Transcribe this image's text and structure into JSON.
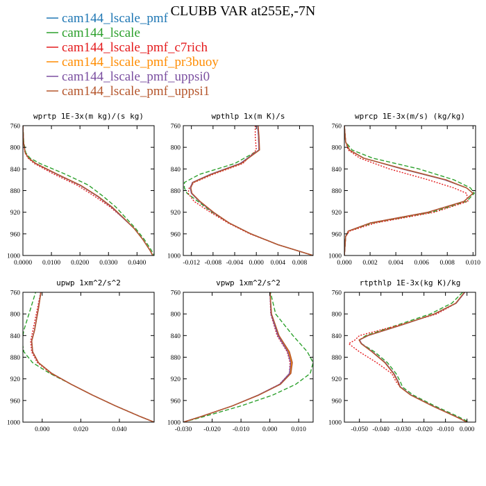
{
  "title": "CLUBB VAR at255E,-7N",
  "legend": [
    {
      "name": "cam144_lscale_pmf",
      "color": "#1f77b4",
      "dash": "solid"
    },
    {
      "name": "cam144_lscale",
      "color": "#2ca02c",
      "dash": "dashed"
    },
    {
      "name": "cam144_lscale_pmf_c7rich",
      "color": "#e41a1c",
      "dash": "dotted"
    },
    {
      "name": "cam144_lscale_pmf_pr3buoy",
      "color": "#ff8c00",
      "dash": "solid"
    },
    {
      "name": "cam144_lscale_pmf_uppsi0",
      "color": "#7b4fa0",
      "dash": "solid"
    },
    {
      "name": "cam144_lscale_pmf_uppsi1",
      "color": "#b5562c",
      "dash": "solid"
    }
  ],
  "chart_data": [
    {
      "type": "line",
      "title": "wprtp  1E-3x(m kg)/(s kg)",
      "xlim": [
        0,
        0.046
      ],
      "ylim": [
        760,
        1000
      ],
      "y_inverted": true,
      "xticks": [
        0,
        0.01,
        0.02,
        0.03,
        0.04
      ],
      "xticklabels": [
        "0.0000",
        "0.0100",
        "0.0200",
        "0.0300",
        "0.0400"
      ],
      "yticks": [
        760,
        800,
        840,
        880,
        920,
        960,
        1000
      ],
      "y": [
        760,
        790,
        810,
        820,
        830,
        850,
        870,
        890,
        910,
        930,
        950,
        970,
        990,
        1000
      ],
      "series": [
        {
          "name": "cam144_lscale_pmf",
          "x": [
            0.0,
            0.0002,
            0.0008,
            0.002,
            0.0045,
            0.012,
            0.02,
            0.026,
            0.031,
            0.035,
            0.039,
            0.042,
            0.0445,
            0.0455
          ]
        },
        {
          "name": "cam144_lscale",
          "x": [
            0.0,
            0.0003,
            0.001,
            0.0025,
            0.006,
            0.015,
            0.023,
            0.028,
            0.0325,
            0.036,
            0.0395,
            0.0425,
            0.045,
            0.046
          ]
        },
        {
          "name": "cam144_lscale_pmf_c7rich",
          "x": [
            0.0,
            0.0002,
            0.0007,
            0.0018,
            0.004,
            0.011,
            0.019,
            0.025,
            0.0305,
            0.035,
            0.039,
            0.042,
            0.0445,
            0.0455
          ]
        },
        {
          "name": "cam144_lscale_pmf_pr3buoy",
          "x": [
            0.0,
            0.0002,
            0.0008,
            0.002,
            0.0045,
            0.012,
            0.02,
            0.026,
            0.031,
            0.035,
            0.039,
            0.042,
            0.0445,
            0.0455
          ]
        },
        {
          "name": "cam144_lscale_pmf_uppsi0",
          "x": [
            0.0,
            0.0002,
            0.0008,
            0.002,
            0.0045,
            0.012,
            0.02,
            0.026,
            0.031,
            0.035,
            0.039,
            0.042,
            0.0445,
            0.0455
          ]
        },
        {
          "name": "cam144_lscale_pmf_uppsi1",
          "x": [
            0.0,
            0.0002,
            0.0008,
            0.002,
            0.0046,
            0.0122,
            0.0202,
            0.0262,
            0.0312,
            0.0352,
            0.039,
            0.042,
            0.0445,
            0.0455
          ]
        }
      ]
    },
    {
      "type": "line",
      "title": "wpthlp  1x(m K)/s",
      "xlim": [
        -0.0135,
        0.0105
      ],
      "ylim": [
        760,
        1000
      ],
      "y_inverted": true,
      "xticks": [
        -0.012,
        -0.008,
        -0.004,
        0,
        0.004,
        0.008
      ],
      "xticklabels": [
        "-0.012",
        "-0.008",
        "-0.004",
        "0.000",
        "0.004",
        "0.008"
      ],
      "yticks": [
        760,
        800,
        840,
        880,
        920,
        960,
        1000
      ],
      "y": [
        755,
        780,
        805,
        830,
        850,
        865,
        875,
        885,
        900,
        920,
        940,
        960,
        980,
        1000
      ],
      "series": [
        {
          "name": "cam144_lscale_pmf",
          "x": [
            0.0002,
            0.0004,
            0.0005,
            -0.003,
            -0.0085,
            -0.0118,
            -0.0122,
            -0.012,
            -0.0105,
            -0.008,
            -0.005,
            -0.001,
            0.004,
            0.0105
          ]
        },
        {
          "name": "cam144_lscale",
          "x": [
            0.0002,
            0.0004,
            0.0005,
            -0.004,
            -0.0105,
            -0.0133,
            -0.0133,
            -0.0128,
            -0.0108,
            -0.0082,
            -0.005,
            -0.001,
            0.004,
            0.0105
          ]
        },
        {
          "name": "cam144_lscale_pmf_c7rich",
          "x": [
            -0.0002,
            -0.0002,
            0.0,
            -0.0025,
            -0.008,
            -0.0115,
            -0.0124,
            -0.0126,
            -0.0115,
            -0.0085,
            -0.0052,
            -0.0012,
            0.004,
            0.0105
          ]
        },
        {
          "name": "cam144_lscale_pmf_pr3buoy",
          "x": [
            0.0002,
            0.0004,
            0.0005,
            -0.003,
            -0.0085,
            -0.0118,
            -0.0122,
            -0.012,
            -0.0105,
            -0.008,
            -0.005,
            -0.001,
            0.004,
            0.0105
          ]
        },
        {
          "name": "cam144_lscale_pmf_uppsi0",
          "x": [
            0.0002,
            0.0004,
            0.0005,
            -0.003,
            -0.0085,
            -0.0118,
            -0.0122,
            -0.012,
            -0.0105,
            -0.008,
            -0.005,
            -0.001,
            0.004,
            0.0105
          ]
        },
        {
          "name": "cam144_lscale_pmf_uppsi1",
          "x": [
            0.0003,
            0.0005,
            0.0006,
            -0.0028,
            -0.0083,
            -0.0117,
            -0.0121,
            -0.0119,
            -0.0104,
            -0.0079,
            -0.005,
            -0.001,
            0.004,
            0.0105
          ]
        }
      ]
    },
    {
      "type": "line",
      "title": "wprcp  1E-3x(m/s) (kg/kg)",
      "xlim": [
        0,
        0.0102
      ],
      "ylim": [
        760,
        1000
      ],
      "y_inverted": true,
      "xticks": [
        0,
        0.002,
        0.004,
        0.006,
        0.008,
        0.01
      ],
      "xticklabels": [
        "0.000",
        "0.002",
        "0.004",
        "0.006",
        "0.008",
        "0.010"
      ],
      "yticks": [
        760,
        800,
        840,
        880,
        920,
        960,
        1000
      ],
      "y": [
        760,
        790,
        805,
        820,
        840,
        860,
        875,
        885,
        900,
        920,
        940,
        955,
        965,
        1000
      ],
      "series": [
        {
          "name": "cam144_lscale_pmf",
          "x": [
            0.0,
            0.0001,
            0.0004,
            0.0015,
            0.0045,
            0.0078,
            0.0095,
            0.01,
            0.0093,
            0.0065,
            0.002,
            0.0003,
            0.0001,
            0.0
          ]
        },
        {
          "name": "cam144_lscale",
          "x": [
            0.0,
            0.0001,
            0.0006,
            0.0022,
            0.0058,
            0.0085,
            0.0098,
            0.0101,
            0.0095,
            0.0068,
            0.0022,
            0.0003,
            0.0001,
            0.0
          ]
        },
        {
          "name": "cam144_lscale_pmf_c7rich",
          "x": [
            0.0,
            0.0001,
            0.0003,
            0.0012,
            0.0035,
            0.0065,
            0.0085,
            0.0095,
            0.0096,
            0.007,
            0.0024,
            0.0004,
            0.0001,
            0.0
          ]
        },
        {
          "name": "cam144_lscale_pmf_pr3buoy",
          "x": [
            0.0,
            0.0001,
            0.0004,
            0.0015,
            0.0045,
            0.0078,
            0.0095,
            0.01,
            0.0093,
            0.0065,
            0.002,
            0.0003,
            0.0001,
            0.0
          ]
        },
        {
          "name": "cam144_lscale_pmf_uppsi0",
          "x": [
            0.0,
            0.0001,
            0.0004,
            0.0015,
            0.0045,
            0.0078,
            0.0095,
            0.01,
            0.0093,
            0.0065,
            0.002,
            0.0003,
            0.0001,
            0.0
          ]
        },
        {
          "name": "cam144_lscale_pmf_uppsi1",
          "x": [
            0.0,
            0.0001,
            0.0004,
            0.0015,
            0.0046,
            0.0079,
            0.0095,
            0.01,
            0.0093,
            0.0065,
            0.002,
            0.0003,
            0.0001,
            0.0
          ]
        }
      ]
    },
    {
      "type": "line",
      "title": "upwp  1xm^2/s^2",
      "xlim": [
        -0.01,
        0.058
      ],
      "ylim": [
        760,
        1000
      ],
      "y_inverted": true,
      "xticks": [
        0,
        0.02,
        0.04
      ],
      "xticklabels": [
        "0.000",
        "0.020",
        "0.040"
      ],
      "yticks": [
        760,
        800,
        840,
        880,
        920,
        960,
        1000
      ],
      "y": [
        755,
        790,
        830,
        850,
        870,
        890,
        910,
        930,
        950,
        970,
        990,
        1000
      ],
      "series": [
        {
          "name": "cam144_lscale_pmf",
          "x": [
            -0.0005,
            -0.002,
            -0.004,
            -0.0055,
            -0.005,
            -0.002,
            0.005,
            0.015,
            0.026,
            0.038,
            0.051,
            0.058
          ]
        },
        {
          "name": "cam144_lscale",
          "x": [
            -0.003,
            -0.006,
            -0.0095,
            -0.0105,
            -0.0095,
            -0.005,
            0.004,
            0.015,
            0.026,
            0.038,
            0.051,
            0.058
          ]
        },
        {
          "name": "cam144_lscale_pmf_c7rich",
          "x": [
            -0.0005,
            -0.0025,
            -0.0048,
            -0.006,
            -0.0055,
            -0.0025,
            0.0045,
            0.015,
            0.026,
            0.038,
            0.051,
            0.058
          ]
        },
        {
          "name": "cam144_lscale_pmf_pr3buoy",
          "x": [
            -0.0005,
            -0.002,
            -0.004,
            -0.0055,
            -0.005,
            -0.002,
            0.005,
            0.015,
            0.026,
            0.038,
            0.051,
            0.058
          ]
        },
        {
          "name": "cam144_lscale_pmf_uppsi0",
          "x": [
            -0.0005,
            -0.002,
            -0.004,
            -0.0055,
            -0.005,
            -0.002,
            0.005,
            0.015,
            0.026,
            0.038,
            0.051,
            0.058
          ]
        },
        {
          "name": "cam144_lscale_pmf_uppsi1",
          "x": [
            -0.0004,
            -0.0019,
            -0.0039,
            -0.0054,
            -0.0049,
            -0.0019,
            0.005,
            0.015,
            0.026,
            0.038,
            0.051,
            0.058
          ]
        }
      ]
    },
    {
      "type": "line",
      "title": "vpwp  1xm^2/s^2",
      "xlim": [
        -0.03,
        0.015
      ],
      "ylim": [
        760,
        1000
      ],
      "y_inverted": true,
      "xticks": [
        -0.03,
        -0.02,
        -0.01,
        0,
        0.01
      ],
      "xticklabels": [
        "-0.030",
        "-0.020",
        "-0.010",
        "0.000",
        "0.010"
      ],
      "yticks": [
        760,
        800,
        840,
        880,
        920,
        960,
        1000
      ],
      "y": [
        755,
        800,
        840,
        870,
        890,
        910,
        930,
        950,
        970,
        990,
        1000
      ],
      "series": [
        {
          "name": "cam144_lscale_pmf",
          "x": [
            0.0,
            0.0005,
            0.003,
            0.0065,
            0.0075,
            0.007,
            0.0035,
            -0.004,
            -0.013,
            -0.024,
            -0.03
          ]
        },
        {
          "name": "cam144_lscale",
          "x": [
            0.0,
            0.002,
            0.008,
            0.013,
            0.015,
            0.014,
            0.009,
            0.001,
            -0.01,
            -0.023,
            -0.03
          ]
        },
        {
          "name": "cam144_lscale_pmf_c7rich",
          "x": [
            0.0,
            0.0003,
            0.0025,
            0.006,
            0.007,
            0.0068,
            0.0033,
            -0.004,
            -0.013,
            -0.024,
            -0.03
          ]
        },
        {
          "name": "cam144_lscale_pmf_pr3buoy",
          "x": [
            0.0,
            0.0005,
            0.003,
            0.0065,
            0.0075,
            0.007,
            0.0035,
            -0.004,
            -0.013,
            -0.024,
            -0.03
          ]
        },
        {
          "name": "cam144_lscale_pmf_uppsi0",
          "x": [
            0.0,
            0.0004,
            0.0028,
            0.0062,
            0.0072,
            0.0068,
            0.0034,
            -0.004,
            -0.013,
            -0.024,
            -0.03
          ]
        },
        {
          "name": "cam144_lscale_pmf_uppsi1",
          "x": [
            0.0,
            0.0006,
            0.0032,
            0.0068,
            0.0078,
            0.0073,
            0.0037,
            -0.0038,
            -0.013,
            -0.024,
            -0.03
          ]
        }
      ]
    },
    {
      "type": "line",
      "title": "rtpthlp  1E-3x(kg K)/kg",
      "xlim": [
        -0.057,
        0.004
      ],
      "ylim": [
        760,
        1000
      ],
      "y_inverted": true,
      "xticks": [
        -0.05,
        -0.04,
        -0.03,
        -0.02,
        -0.01,
        0
      ],
      "xticklabels": [
        "-0.050",
        "-0.040",
        "-0.030",
        "-0.020",
        "-0.010",
        "0.000"
      ],
      "yticks": [
        760,
        800,
        840,
        880,
        920,
        960,
        1000
      ],
      "y": [
        760,
        780,
        800,
        820,
        840,
        848,
        855,
        870,
        890,
        910,
        925,
        935,
        950,
        970,
        990,
        1000
      ],
      "series": [
        {
          "name": "cam144_lscale_pmf",
          "x": [
            -0.001,
            -0.005,
            -0.015,
            -0.03,
            -0.046,
            -0.05,
            -0.049,
            -0.044,
            -0.038,
            -0.034,
            -0.032,
            -0.031,
            -0.026,
            -0.016,
            -0.005,
            0.0
          ]
        },
        {
          "name": "cam144_lscale",
          "x": [
            -0.002,
            -0.007,
            -0.017,
            -0.032,
            -0.047,
            -0.05,
            -0.049,
            -0.043,
            -0.037,
            -0.033,
            -0.031,
            -0.03,
            -0.025,
            -0.015,
            -0.004,
            0.001
          ]
        },
        {
          "name": "cam144_lscale_pmf_c7rich",
          "x": [
            -0.001,
            -0.005,
            -0.014,
            -0.031,
            -0.05,
            -0.052,
            -0.055,
            -0.05,
            -0.042,
            -0.035,
            -0.033,
            -0.031,
            -0.026,
            -0.016,
            -0.005,
            0.0
          ]
        },
        {
          "name": "cam144_lscale_pmf_pr3buoy",
          "x": [
            -0.001,
            -0.005,
            -0.015,
            -0.03,
            -0.046,
            -0.05,
            -0.049,
            -0.044,
            -0.038,
            -0.034,
            -0.032,
            -0.031,
            -0.026,
            -0.016,
            -0.005,
            0.0
          ]
        },
        {
          "name": "cam144_lscale_pmf_uppsi0",
          "x": [
            -0.001,
            -0.005,
            -0.015,
            -0.03,
            -0.046,
            -0.05,
            -0.049,
            -0.044,
            -0.038,
            -0.034,
            -0.032,
            -0.031,
            -0.026,
            -0.016,
            -0.005,
            0.0
          ]
        },
        {
          "name": "cam144_lscale_pmf_uppsi1",
          "x": [
            -0.0012,
            -0.0052,
            -0.0152,
            -0.0302,
            -0.0462,
            -0.0502,
            -0.0492,
            -0.0442,
            -0.0382,
            -0.0342,
            -0.0322,
            -0.0312,
            -0.0262,
            -0.0162,
            -0.0052,
            0.0
          ]
        }
      ]
    }
  ]
}
